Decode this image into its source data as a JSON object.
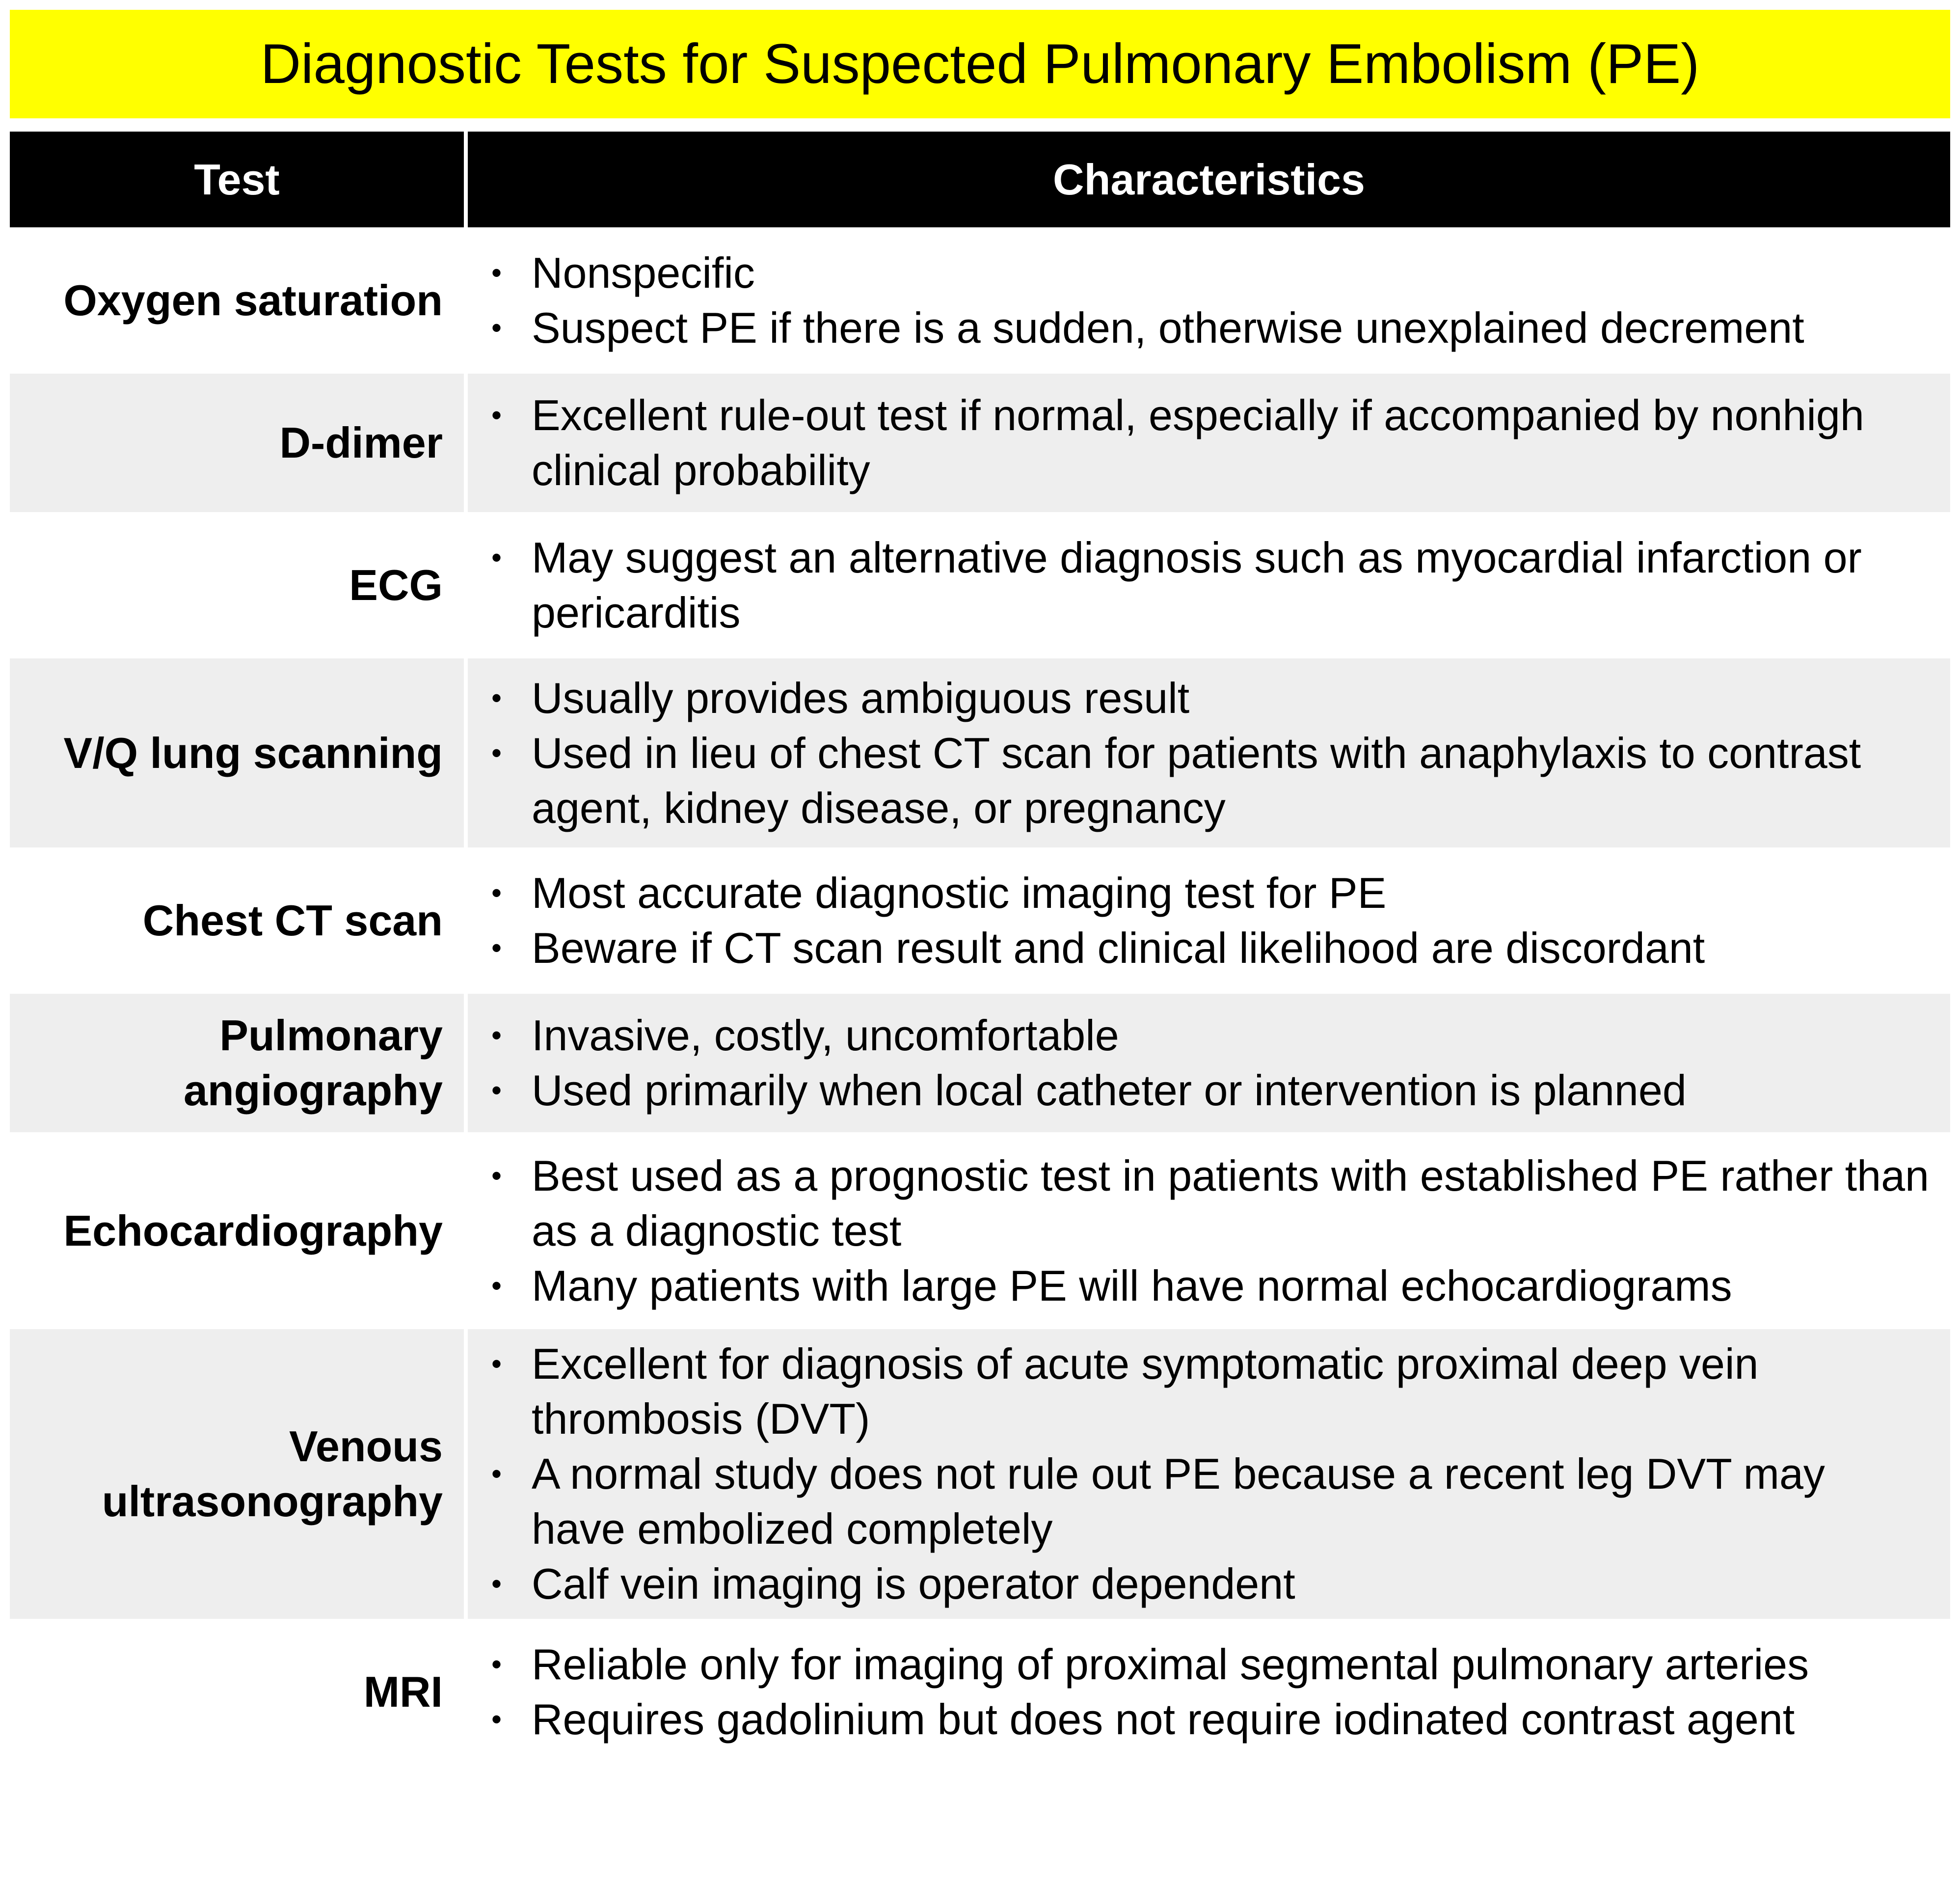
{
  "title": "Diagnostic Tests for Suspected Pulmonary Embolism (PE)",
  "columns": {
    "test": "Test",
    "characteristics": "Characteristics"
  },
  "rows": [
    {
      "test": "Oxygen saturation",
      "bullets": [
        "Nonspecific",
        "Suspect PE if there is a sudden, otherwise unexplained decrement"
      ]
    },
    {
      "test": "D-dimer",
      "bullets": [
        "Excellent rule-out test if normal, especially if accompanied by nonhigh clinical probability"
      ]
    },
    {
      "test": "ECG",
      "bullets": [
        "May suggest an alternative diagnosis such as myocardial infarction or pericarditis"
      ]
    },
    {
      "test": "V/Q lung scanning",
      "bullets": [
        "Usually provides ambiguous result",
        "Used in lieu of chest CT scan for patients with anaphylaxis to contrast agent, kidney disease, or pregnancy"
      ]
    },
    {
      "test": "Chest CT scan",
      "bullets": [
        "Most accurate diagnostic imaging test for PE",
        "Beware if CT scan result and clinical likelihood are discordant"
      ]
    },
    {
      "test": "Pulmonary angiography",
      "bullets": [
        "Invasive, costly, uncomfortable",
        "Used primarily when local catheter or intervention is planned"
      ]
    },
    {
      "test": "Echocardiography",
      "bullets": [
        "Best used as a prognostic test in patients with established PE rather than as a diagnostic test",
        "Many patients with large PE will have normal echocardiograms"
      ]
    },
    {
      "test": "Venous ultrasonography",
      "bullets": [
        "Excellent for diagnosis of acute symptomatic proximal deep vein thrombosis (DVT)",
        "A normal study does not rule out PE because a recent leg DVT may have embolized completely",
        "Calf vein imaging is operator dependent"
      ]
    },
    {
      "test": "MRI",
      "bullets": [
        "Reliable only for imaging of proximal segmental pulmonary arteries",
        "Requires gadolinium but does not require iodinated contrast agent"
      ]
    }
  ],
  "colors": {
    "title_background": "#ffff00",
    "header_background": "#000000",
    "header_text": "#ffffff",
    "shaded_row": "#eeeeee",
    "plain_row": "#ffffff"
  }
}
